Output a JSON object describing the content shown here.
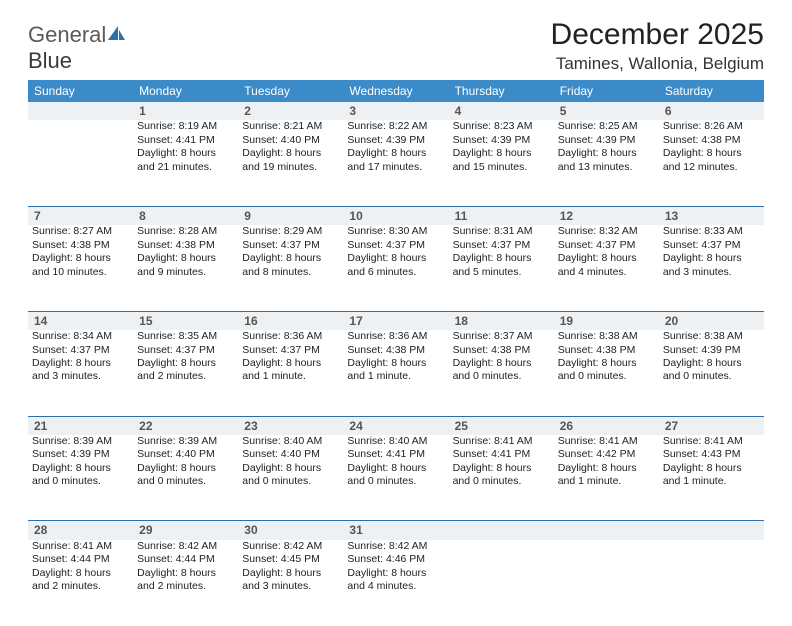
{
  "brand": {
    "part1": "General",
    "part2": "Blue"
  },
  "title": "December 2025",
  "location": "Tamines, Wallonia, Belgium",
  "colors": {
    "header_bg": "#3b8bc9",
    "header_text": "#ffffff",
    "daynum_bg": "#eef1f4",
    "row_border": "#2f6fa8",
    "text": "#222222",
    "logo_gray": "#5a5a5a",
    "logo_blue": "#2f6fa8"
  },
  "weekdays": [
    "Sunday",
    "Monday",
    "Tuesday",
    "Wednesday",
    "Thursday",
    "Friday",
    "Saturday"
  ],
  "weeks": [
    {
      "nums": [
        "",
        "1",
        "2",
        "3",
        "4",
        "5",
        "6"
      ],
      "cells": [
        {
          "sunrise": "",
          "sunset": "",
          "day1": "",
          "day2": ""
        },
        {
          "sunrise": "Sunrise: 8:19 AM",
          "sunset": "Sunset: 4:41 PM",
          "day1": "Daylight: 8 hours",
          "day2": "and 21 minutes."
        },
        {
          "sunrise": "Sunrise: 8:21 AM",
          "sunset": "Sunset: 4:40 PM",
          "day1": "Daylight: 8 hours",
          "day2": "and 19 minutes."
        },
        {
          "sunrise": "Sunrise: 8:22 AM",
          "sunset": "Sunset: 4:39 PM",
          "day1": "Daylight: 8 hours",
          "day2": "and 17 minutes."
        },
        {
          "sunrise": "Sunrise: 8:23 AM",
          "sunset": "Sunset: 4:39 PM",
          "day1": "Daylight: 8 hours",
          "day2": "and 15 minutes."
        },
        {
          "sunrise": "Sunrise: 8:25 AM",
          "sunset": "Sunset: 4:39 PM",
          "day1": "Daylight: 8 hours",
          "day2": "and 13 minutes."
        },
        {
          "sunrise": "Sunrise: 8:26 AM",
          "sunset": "Sunset: 4:38 PM",
          "day1": "Daylight: 8 hours",
          "day2": "and 12 minutes."
        }
      ]
    },
    {
      "nums": [
        "7",
        "8",
        "9",
        "10",
        "11",
        "12",
        "13"
      ],
      "cells": [
        {
          "sunrise": "Sunrise: 8:27 AM",
          "sunset": "Sunset: 4:38 PM",
          "day1": "Daylight: 8 hours",
          "day2": "and 10 minutes."
        },
        {
          "sunrise": "Sunrise: 8:28 AM",
          "sunset": "Sunset: 4:38 PM",
          "day1": "Daylight: 8 hours",
          "day2": "and 9 minutes."
        },
        {
          "sunrise": "Sunrise: 8:29 AM",
          "sunset": "Sunset: 4:37 PM",
          "day1": "Daylight: 8 hours",
          "day2": "and 8 minutes."
        },
        {
          "sunrise": "Sunrise: 8:30 AM",
          "sunset": "Sunset: 4:37 PM",
          "day1": "Daylight: 8 hours",
          "day2": "and 6 minutes."
        },
        {
          "sunrise": "Sunrise: 8:31 AM",
          "sunset": "Sunset: 4:37 PM",
          "day1": "Daylight: 8 hours",
          "day2": "and 5 minutes."
        },
        {
          "sunrise": "Sunrise: 8:32 AM",
          "sunset": "Sunset: 4:37 PM",
          "day1": "Daylight: 8 hours",
          "day2": "and 4 minutes."
        },
        {
          "sunrise": "Sunrise: 8:33 AM",
          "sunset": "Sunset: 4:37 PM",
          "day1": "Daylight: 8 hours",
          "day2": "and 3 minutes."
        }
      ]
    },
    {
      "nums": [
        "14",
        "15",
        "16",
        "17",
        "18",
        "19",
        "20"
      ],
      "cells": [
        {
          "sunrise": "Sunrise: 8:34 AM",
          "sunset": "Sunset: 4:37 PM",
          "day1": "Daylight: 8 hours",
          "day2": "and 3 minutes."
        },
        {
          "sunrise": "Sunrise: 8:35 AM",
          "sunset": "Sunset: 4:37 PM",
          "day1": "Daylight: 8 hours",
          "day2": "and 2 minutes."
        },
        {
          "sunrise": "Sunrise: 8:36 AM",
          "sunset": "Sunset: 4:37 PM",
          "day1": "Daylight: 8 hours",
          "day2": "and 1 minute."
        },
        {
          "sunrise": "Sunrise: 8:36 AM",
          "sunset": "Sunset: 4:38 PM",
          "day1": "Daylight: 8 hours",
          "day2": "and 1 minute."
        },
        {
          "sunrise": "Sunrise: 8:37 AM",
          "sunset": "Sunset: 4:38 PM",
          "day1": "Daylight: 8 hours",
          "day2": "and 0 minutes."
        },
        {
          "sunrise": "Sunrise: 8:38 AM",
          "sunset": "Sunset: 4:38 PM",
          "day1": "Daylight: 8 hours",
          "day2": "and 0 minutes."
        },
        {
          "sunrise": "Sunrise: 8:38 AM",
          "sunset": "Sunset: 4:39 PM",
          "day1": "Daylight: 8 hours",
          "day2": "and 0 minutes."
        }
      ]
    },
    {
      "nums": [
        "21",
        "22",
        "23",
        "24",
        "25",
        "26",
        "27"
      ],
      "cells": [
        {
          "sunrise": "Sunrise: 8:39 AM",
          "sunset": "Sunset: 4:39 PM",
          "day1": "Daylight: 8 hours",
          "day2": "and 0 minutes."
        },
        {
          "sunrise": "Sunrise: 8:39 AM",
          "sunset": "Sunset: 4:40 PM",
          "day1": "Daylight: 8 hours",
          "day2": "and 0 minutes."
        },
        {
          "sunrise": "Sunrise: 8:40 AM",
          "sunset": "Sunset: 4:40 PM",
          "day1": "Daylight: 8 hours",
          "day2": "and 0 minutes."
        },
        {
          "sunrise": "Sunrise: 8:40 AM",
          "sunset": "Sunset: 4:41 PM",
          "day1": "Daylight: 8 hours",
          "day2": "and 0 minutes."
        },
        {
          "sunrise": "Sunrise: 8:41 AM",
          "sunset": "Sunset: 4:41 PM",
          "day1": "Daylight: 8 hours",
          "day2": "and 0 minutes."
        },
        {
          "sunrise": "Sunrise: 8:41 AM",
          "sunset": "Sunset: 4:42 PM",
          "day1": "Daylight: 8 hours",
          "day2": "and 1 minute."
        },
        {
          "sunrise": "Sunrise: 8:41 AM",
          "sunset": "Sunset: 4:43 PM",
          "day1": "Daylight: 8 hours",
          "day2": "and 1 minute."
        }
      ]
    },
    {
      "nums": [
        "28",
        "29",
        "30",
        "31",
        "",
        "",
        ""
      ],
      "cells": [
        {
          "sunrise": "Sunrise: 8:41 AM",
          "sunset": "Sunset: 4:44 PM",
          "day1": "Daylight: 8 hours",
          "day2": "and 2 minutes."
        },
        {
          "sunrise": "Sunrise: 8:42 AM",
          "sunset": "Sunset: 4:44 PM",
          "day1": "Daylight: 8 hours",
          "day2": "and 2 minutes."
        },
        {
          "sunrise": "Sunrise: 8:42 AM",
          "sunset": "Sunset: 4:45 PM",
          "day1": "Daylight: 8 hours",
          "day2": "and 3 minutes."
        },
        {
          "sunrise": "Sunrise: 8:42 AM",
          "sunset": "Sunset: 4:46 PM",
          "day1": "Daylight: 8 hours",
          "day2": "and 4 minutes."
        },
        {
          "sunrise": "",
          "sunset": "",
          "day1": "",
          "day2": ""
        },
        {
          "sunrise": "",
          "sunset": "",
          "day1": "",
          "day2": ""
        },
        {
          "sunrise": "",
          "sunset": "",
          "day1": "",
          "day2": ""
        }
      ]
    }
  ]
}
